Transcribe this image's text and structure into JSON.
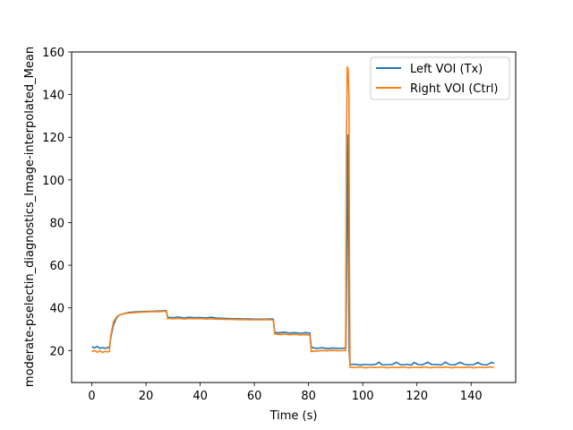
{
  "chart_data": {
    "type": "line",
    "title": "",
    "xlabel": "Time (s)",
    "ylabel": "moderate-pselectin_diagnostics_Image-interpolated_Mean",
    "xlim": [
      -7.45,
      156.45
    ],
    "ylim": [
      5,
      160
    ],
    "xticks": [
      0,
      20,
      40,
      60,
      80,
      100,
      120,
      140
    ],
    "yticks": [
      20,
      40,
      60,
      80,
      100,
      120,
      140,
      160
    ],
    "grid": false,
    "legend_position": "top-right",
    "series": [
      {
        "name": "Left VOI (Tx)",
        "color": "#1f77b4",
        "points": [
          [
            0,
            21.8
          ],
          [
            1,
            21.3
          ],
          [
            2,
            21.9
          ],
          [
            3,
            21.0
          ],
          [
            4,
            21.4
          ],
          [
            5,
            21.0
          ],
          [
            6,
            21.5
          ],
          [
            6.5,
            21.2
          ],
          [
            7,
            26
          ],
          [
            8,
            32
          ],
          [
            9,
            35
          ],
          [
            10,
            36.5
          ],
          [
            12,
            37.4
          ],
          [
            14,
            37.9
          ],
          [
            16,
            38.1
          ],
          [
            18,
            38.2
          ],
          [
            20,
            38.3
          ],
          [
            22,
            38.4
          ],
          [
            24,
            38.5
          ],
          [
            26,
            38.6
          ],
          [
            27.5,
            38.7
          ],
          [
            28,
            35.6
          ],
          [
            30,
            35.4
          ],
          [
            32,
            35.7
          ],
          [
            34,
            35.3
          ],
          [
            36,
            35.6
          ],
          [
            38,
            35.4
          ],
          [
            40,
            35.5
          ],
          [
            42,
            35.3
          ],
          [
            44,
            35.6
          ],
          [
            46,
            35.2
          ],
          [
            48,
            35.1
          ],
          [
            50,
            35.0
          ],
          [
            52,
            34.9
          ],
          [
            54,
            34.9
          ],
          [
            56,
            34.8
          ],
          [
            58,
            34.8
          ],
          [
            60,
            34.7
          ],
          [
            62,
            34.7
          ],
          [
            64,
            34.7
          ],
          [
            66,
            34.8
          ],
          [
            67,
            34.7
          ],
          [
            67.5,
            28.5
          ],
          [
            69,
            28.3
          ],
          [
            71,
            28.6
          ],
          [
            73,
            28.2
          ],
          [
            75,
            28.4
          ],
          [
            77,
            28.1
          ],
          [
            79,
            28.4
          ],
          [
            80.5,
            28.2
          ],
          [
            81,
            21.5
          ],
          [
            83,
            21.0
          ],
          [
            85,
            21.3
          ],
          [
            87,
            20.9
          ],
          [
            89,
            21.2
          ],
          [
            91,
            21.0
          ],
          [
            93,
            21.1
          ],
          [
            93.8,
            21.3
          ],
          [
            94.5,
            121
          ],
          [
            95.0,
            20
          ],
          [
            95.3,
            13.4
          ],
          [
            97,
            13.6
          ],
          [
            99,
            13.2
          ],
          [
            101,
            13.5
          ],
          [
            103,
            13.3
          ],
          [
            105,
            13.6
          ],
          [
            106,
            14.6
          ],
          [
            107,
            13.4
          ],
          [
            109,
            13.3
          ],
          [
            111,
            13.5
          ],
          [
            112.5,
            14.5
          ],
          [
            114,
            13.3
          ],
          [
            116,
            13.5
          ],
          [
            118,
            13.2
          ],
          [
            119,
            14.4
          ],
          [
            120.5,
            13.4
          ],
          [
            122,
            13.3
          ],
          [
            124,
            14.5
          ],
          [
            125.5,
            13.4
          ],
          [
            127,
            13.5
          ],
          [
            129,
            13.2
          ],
          [
            130.5,
            14.6
          ],
          [
            132,
            13.4
          ],
          [
            134,
            13.3
          ],
          [
            136,
            14.5
          ],
          [
            137.5,
            13.5
          ],
          [
            139,
            13.3
          ],
          [
            141,
            13.4
          ],
          [
            142.5,
            14.4
          ],
          [
            144,
            13.4
          ],
          [
            146,
            13.3
          ],
          [
            147.5,
            14.5
          ],
          [
            148.5,
            13.9
          ]
        ]
      },
      {
        "name": "Right VOI (Ctrl)",
        "color": "#ff7f0e",
        "points": [
          [
            0,
            19.5
          ],
          [
            1,
            20.0
          ],
          [
            2,
            19.2
          ],
          [
            3,
            19.8
          ],
          [
            4,
            19.1
          ],
          [
            5,
            19.6
          ],
          [
            6,
            19.3
          ],
          [
            6.5,
            19.6
          ],
          [
            7,
            27
          ],
          [
            8,
            33.5
          ],
          [
            9,
            35.5
          ],
          [
            10,
            36.6
          ],
          [
            12,
            37.3
          ],
          [
            14,
            37.6
          ],
          [
            16,
            37.8
          ],
          [
            18,
            38.0
          ],
          [
            20,
            38.1
          ],
          [
            22,
            38.2
          ],
          [
            24,
            38.2
          ],
          [
            26,
            38.3
          ],
          [
            27.5,
            38.4
          ],
          [
            28,
            35.0
          ],
          [
            30,
            34.9
          ],
          [
            32,
            35.1
          ],
          [
            34,
            34.8
          ],
          [
            36,
            35.0
          ],
          [
            38,
            34.9
          ],
          [
            40,
            35.0
          ],
          [
            42,
            34.8
          ],
          [
            44,
            34.9
          ],
          [
            46,
            34.7
          ],
          [
            48,
            34.7
          ],
          [
            50,
            34.6
          ],
          [
            52,
            34.6
          ],
          [
            54,
            34.5
          ],
          [
            56,
            34.5
          ],
          [
            58,
            34.4
          ],
          [
            60,
            34.4
          ],
          [
            62,
            34.4
          ],
          [
            64,
            34.5
          ],
          [
            66,
            34.4
          ],
          [
            67,
            34.3
          ],
          [
            67.5,
            27.8
          ],
          [
            69,
            27.5
          ],
          [
            71,
            27.7
          ],
          [
            73,
            27.4
          ],
          [
            75,
            27.6
          ],
          [
            77,
            27.3
          ],
          [
            79,
            27.5
          ],
          [
            80.5,
            27.2
          ],
          [
            81,
            19.5
          ],
          [
            83,
            19.8
          ],
          [
            85,
            20.0
          ],
          [
            87,
            19.9
          ],
          [
            89,
            20.1
          ],
          [
            91,
            19.9
          ],
          [
            93,
            20.0
          ],
          [
            93.7,
            20.0
          ],
          [
            94.0,
            120
          ],
          [
            94.3,
            153
          ],
          [
            94.6,
            152
          ],
          [
            94.9,
            140
          ],
          [
            95.1,
            60
          ],
          [
            95.3,
            12.2
          ],
          [
            97,
            12.0
          ],
          [
            99,
            12.3
          ],
          [
            101,
            11.9
          ],
          [
            103,
            12.2
          ],
          [
            105,
            12.0
          ],
          [
            107,
            12.3
          ],
          [
            109,
            11.9
          ],
          [
            111,
            12.2
          ],
          [
            113,
            12.0
          ],
          [
            115,
            12.3
          ],
          [
            117,
            11.9
          ],
          [
            119,
            12.2
          ],
          [
            121,
            12.0
          ],
          [
            123,
            12.3
          ],
          [
            125,
            11.9
          ],
          [
            127,
            12.2
          ],
          [
            129,
            12.0
          ],
          [
            131,
            12.3
          ],
          [
            133,
            11.9
          ],
          [
            135,
            12.2
          ],
          [
            137,
            12.0
          ],
          [
            139,
            12.3
          ],
          [
            141,
            11.9
          ],
          [
            143,
            12.2
          ],
          [
            145,
            12.0
          ],
          [
            147,
            12.3
          ],
          [
            148.5,
            12.1
          ]
        ]
      }
    ]
  }
}
